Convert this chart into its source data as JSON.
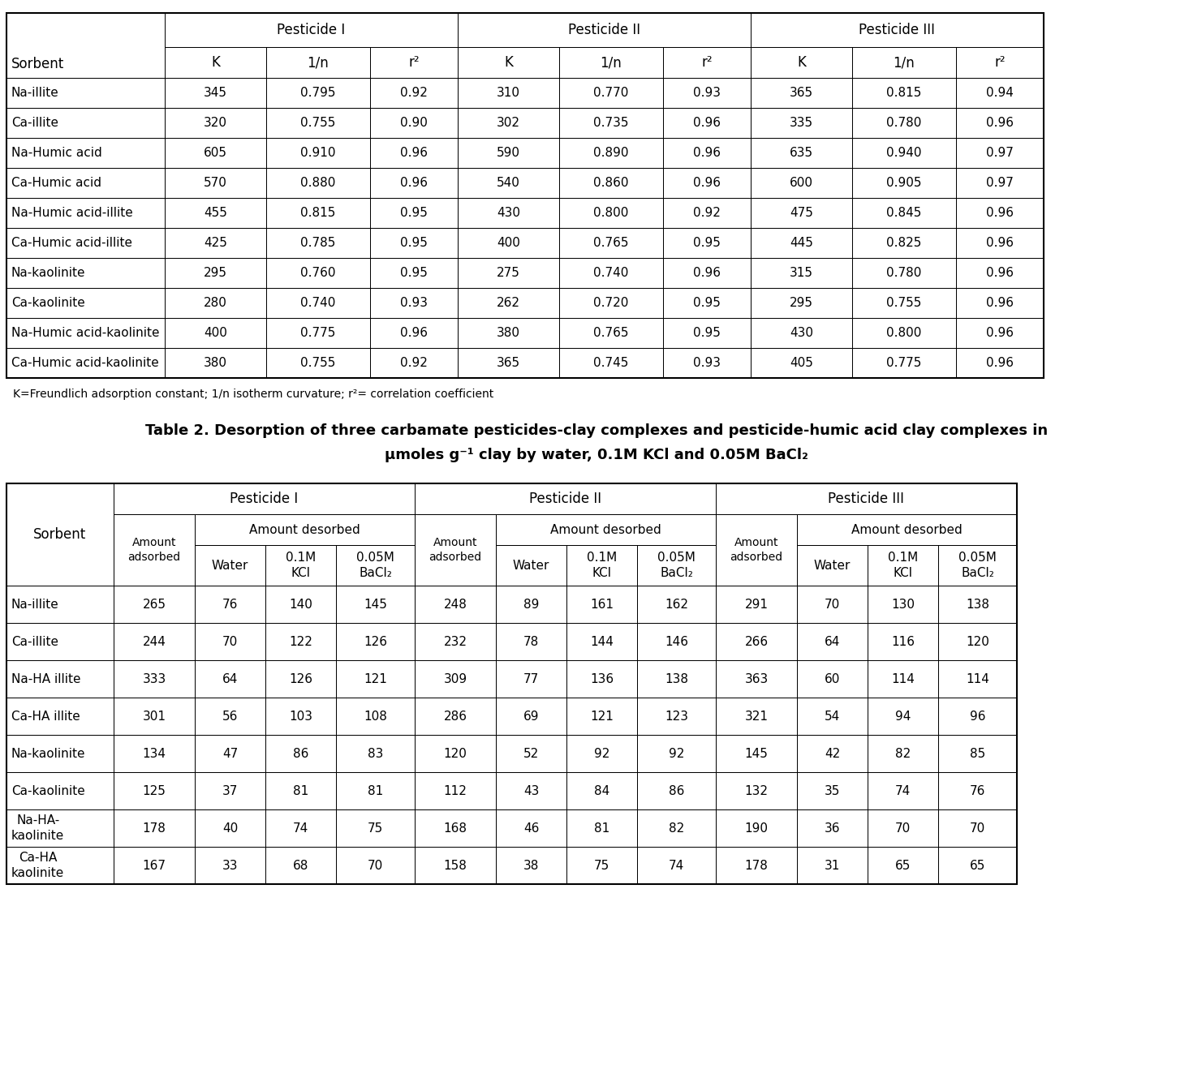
{
  "table1_footnote": "K=Freundlich adsorption constant; 1/n isotherm curvature; r²= correlation coefficient",
  "table1_rows": [
    [
      "Na-illite",
      "345",
      "0.795",
      "0.92",
      "310",
      "0.770",
      "0.93",
      "365",
      "0.815",
      "0.94"
    ],
    [
      "Ca-illite",
      "320",
      "0.755",
      "0.90",
      "302",
      "0.735",
      "0.96",
      "335",
      "0.780",
      "0.96"
    ],
    [
      "Na-Humic acid",
      "605",
      "0.910",
      "0.96",
      "590",
      "0.890",
      "0.96",
      "635",
      "0.940",
      "0.97"
    ],
    [
      "Ca-Humic acid",
      "570",
      "0.880",
      "0.96",
      "540",
      "0.860",
      "0.96",
      "600",
      "0.905",
      "0.97"
    ],
    [
      "Na-Humic acid-illite",
      "455",
      "0.815",
      "0.95",
      "430",
      "0.800",
      "0.92",
      "475",
      "0.845",
      "0.96"
    ],
    [
      "Ca-Humic acid-illite",
      "425",
      "0.785",
      "0.95",
      "400",
      "0.765",
      "0.95",
      "445",
      "0.825",
      "0.96"
    ],
    [
      "Na-kaolinite",
      "295",
      "0.760",
      "0.95",
      "275",
      "0.740",
      "0.96",
      "315",
      "0.780",
      "0.96"
    ],
    [
      "Ca-kaolinite",
      "280",
      "0.740",
      "0.93",
      "262",
      "0.720",
      "0.95",
      "295",
      "0.755",
      "0.96"
    ],
    [
      "Na-Humic acid-kaolinite",
      "400",
      "0.775",
      "0.96",
      "380",
      "0.765",
      "0.95",
      "430",
      "0.800",
      "0.96"
    ],
    [
      "Ca-Humic acid-kaolinite",
      "380",
      "0.755",
      "0.92",
      "365",
      "0.745",
      "0.93",
      "405",
      "0.775",
      "0.96"
    ]
  ],
  "table2_title_line1": "Table 2. Desorption of three carbamate pesticides-clay complexes and pesticide-humic acid clay complexes in",
  "table2_title_line2": "μmoles g⁻¹ clay by water, 0.1M KCl and 0.05M BaCl₂",
  "table2_rows": [
    [
      "Na-illite",
      "265",
      "76",
      "140",
      "145",
      "248",
      "89",
      "161",
      "162",
      "291",
      "70",
      "130",
      "138"
    ],
    [
      "Ca-illite",
      "244",
      "70",
      "122",
      "126",
      "232",
      "78",
      "144",
      "146",
      "266",
      "64",
      "116",
      "120"
    ],
    [
      "Na-HA illite",
      "333",
      "64",
      "126",
      "121",
      "309",
      "77",
      "136",
      "138",
      "363",
      "60",
      "114",
      "114"
    ],
    [
      "Ca-HA illite",
      "301",
      "56",
      "103",
      "108",
      "286",
      "69",
      "121",
      "123",
      "321",
      "54",
      "94",
      "96"
    ],
    [
      "Na-kaolinite",
      "134",
      "47",
      "86",
      "83",
      "120",
      "52",
      "92",
      "92",
      "145",
      "42",
      "82",
      "85"
    ],
    [
      "Ca-kaolinite",
      "125",
      "37",
      "81",
      "81",
      "112",
      "43",
      "84",
      "86",
      "132",
      "35",
      "74",
      "76"
    ],
    [
      "Na-HA-\nkaolinite",
      "178",
      "40",
      "74",
      "75",
      "168",
      "46",
      "81",
      "82",
      "190",
      "36",
      "70",
      "70"
    ],
    [
      "Ca-HA\nkaolinite",
      "167",
      "33",
      "68",
      "70",
      "158",
      "38",
      "75",
      "74",
      "178",
      "31",
      "65",
      "65"
    ]
  ]
}
